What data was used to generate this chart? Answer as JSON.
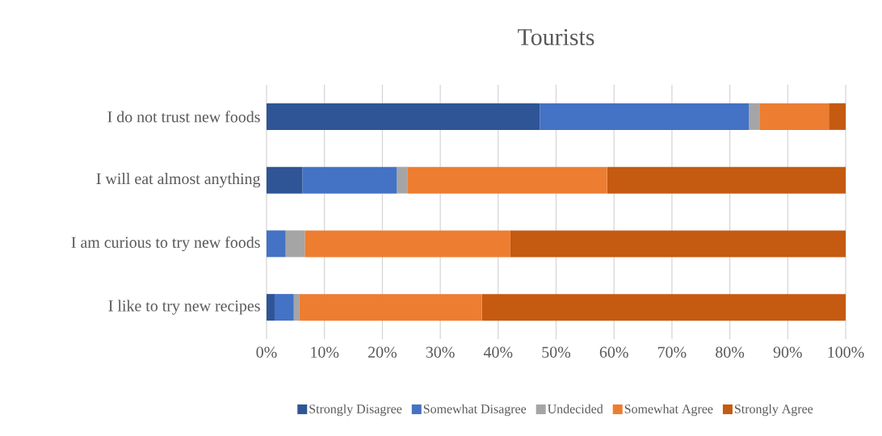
{
  "chart_data": {
    "type": "bar",
    "title": "Tourists",
    "orientation": "horizontal",
    "stacked": true,
    "categories": [
      "I do not trust new foods",
      "I will eat almost anything",
      "I am curious to try new foods",
      "I like to try new recipes"
    ],
    "series": [
      {
        "name": "Strongly Disagree",
        "color": "#2f5597",
        "values": [
          47.2,
          6.2,
          0,
          1.4
        ]
      },
      {
        "name": "Somewhat Disagree",
        "color": "#4472c4",
        "values": [
          36.1,
          16.3,
          3.3,
          3.3
        ]
      },
      {
        "name": "Undecided",
        "color": "#a5a5a5",
        "values": [
          1.8,
          1.8,
          3.3,
          1.0
        ]
      },
      {
        "name": "Somewhat Agree",
        "color": "#ed7d31",
        "values": [
          12.0,
          34.5,
          35.5,
          31.5
        ]
      },
      {
        "name": "Strongly Agree",
        "color": "#c55a11",
        "values": [
          2.9,
          41.2,
          57.9,
          62.8
        ]
      }
    ],
    "xlim": [
      0,
      100
    ],
    "xticks": [
      {
        "value": 0,
        "label": "0%"
      },
      {
        "value": 10,
        "label": "10%"
      },
      {
        "value": 20,
        "label": "20%"
      },
      {
        "value": 30,
        "label": "30%"
      },
      {
        "value": 40,
        "label": "40%"
      },
      {
        "value": 50,
        "label": "50%"
      },
      {
        "value": 60,
        "label": "60%"
      },
      {
        "value": 70,
        "label": "70%"
      },
      {
        "value": 80,
        "label": "80%"
      },
      {
        "value": 90,
        "label": "90%"
      },
      {
        "value": 100,
        "label": "100%"
      }
    ],
    "grid": "x",
    "legend": "bottom"
  }
}
